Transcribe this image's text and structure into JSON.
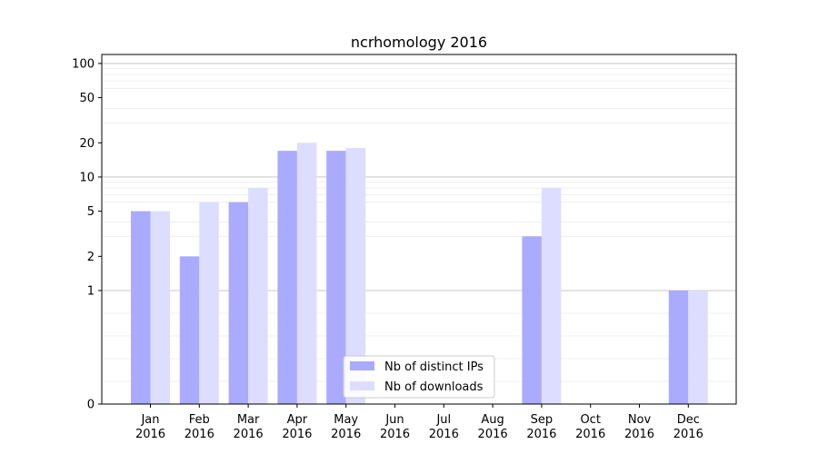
{
  "chart_data": {
    "type": "bar",
    "title": "ncrhomology 2016",
    "xlabel": "",
    "ylabel": "",
    "y_scale": "symlog",
    "y_ticks": [
      0,
      1,
      2,
      5,
      10,
      20,
      50,
      100
    ],
    "ylim": [
      0,
      120
    ],
    "categories": [
      [
        "Jan",
        "2016"
      ],
      [
        "Feb",
        "2016"
      ],
      [
        "Mar",
        "2016"
      ],
      [
        "Apr",
        "2016"
      ],
      [
        "May",
        "2016"
      ],
      [
        "Jun",
        "2016"
      ],
      [
        "Jul",
        "2016"
      ],
      [
        "Aug",
        "2016"
      ],
      [
        "Sep",
        "2016"
      ],
      [
        "Oct",
        "2016"
      ],
      [
        "Nov",
        "2016"
      ],
      [
        "Dec",
        "2016"
      ]
    ],
    "series": [
      {
        "name": "Nb of distinct IPs",
        "color": "#aaaaff",
        "values": [
          5,
          2,
          6,
          17,
          17,
          0,
          0,
          0,
          3,
          0,
          0,
          1
        ]
      },
      {
        "name": "Nb of downloads",
        "color": "#ddddff",
        "values": [
          5,
          6,
          8,
          20,
          18,
          0,
          0,
          0,
          8,
          0,
          0,
          1
        ]
      }
    ],
    "grid": true,
    "legend_position": "bottom-center"
  }
}
